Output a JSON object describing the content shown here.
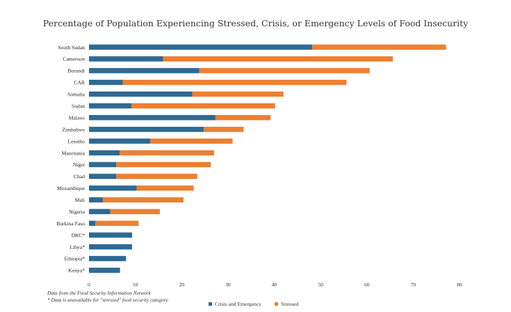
{
  "chart_data": {
    "type": "bar",
    "orientation": "horizontal",
    "stacked": true,
    "title": "Percentage of Population Experiencing Stressed, Crisis, or Emergency Levels of Food Insecurity",
    "xlabel": "",
    "ylabel": "",
    "xlim": [
      0,
      80
    ],
    "xticks": [
      0,
      10,
      20,
      30,
      40,
      50,
      60,
      70,
      80
    ],
    "grid": false,
    "legend_position": "bottom",
    "categories": [
      "South Sudan",
      "Cameroon",
      "Burundi",
      "CAR",
      "Somalia",
      "Sudan",
      "Malawi",
      "Zimbabwe",
      "Lesotho",
      "Mauritania",
      "Niger",
      "Chad",
      "Mozambique",
      "Mali",
      "Nigeria",
      "Burkina Faso",
      "DRC*",
      "Libya*",
      "Ethiopia*",
      "Kenya*"
    ],
    "series": [
      {
        "name": "Crisis and Emergency",
        "color": "#2e6a93",
        "values": [
          48.2,
          16.0,
          23.8,
          7.3,
          22.3,
          9.2,
          27.3,
          24.8,
          13.2,
          6.6,
          5.9,
          5.9,
          10.3,
          3.0,
          4.6,
          1.4,
          9.3,
          9.3,
          8.0,
          6.7
        ]
      },
      {
        "name": "Stressed",
        "color": "#ee7f31",
        "values": [
          28.9,
          49.6,
          36.8,
          48.3,
          19.7,
          31.0,
          11.9,
          8.6,
          17.8,
          20.4,
          20.4,
          17.5,
          12.3,
          17.4,
          10.7,
          9.3,
          0,
          0,
          0,
          0
        ]
      }
    ]
  },
  "notes": {
    "source": "Data from the Food Security Information Network",
    "footnote": "* Data is unavailable for \"stressed\" food security category"
  }
}
